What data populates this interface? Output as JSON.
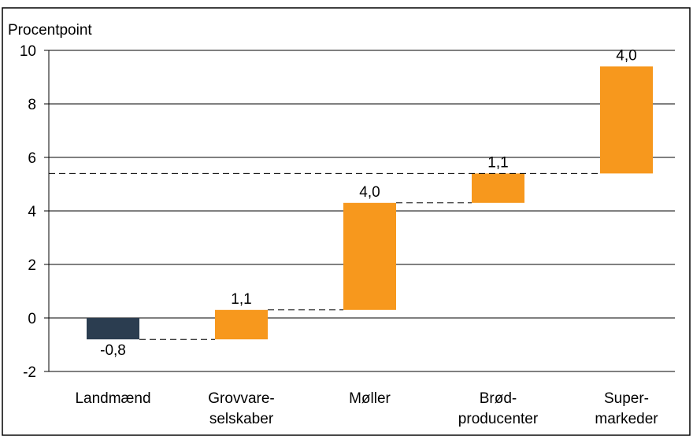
{
  "chart_data": {
    "type": "waterfall",
    "y_label": "Procentpoint",
    "categories": [
      [
        "Landmænd"
      ],
      [
        "Grovvare-",
        "selskaber"
      ],
      [
        "Møller"
      ],
      [
        "Brød-",
        "producenter"
      ],
      [
        "Super-",
        "markeder"
      ]
    ],
    "values": [
      -0.8,
      1.1,
      4.0,
      1.1,
      4.0
    ],
    "value_labels": [
      "-0,8",
      "1,1",
      "4,0",
      "1,1",
      "4,0"
    ],
    "colors": [
      "#2b3d50",
      "#f7981d",
      "#f7981d",
      "#f7981d",
      "#f7981d"
    ],
    "ylim": [
      -2,
      10
    ],
    "yticks": [
      -2,
      0,
      2,
      4,
      6,
      8,
      10
    ],
    "grid": true
  }
}
